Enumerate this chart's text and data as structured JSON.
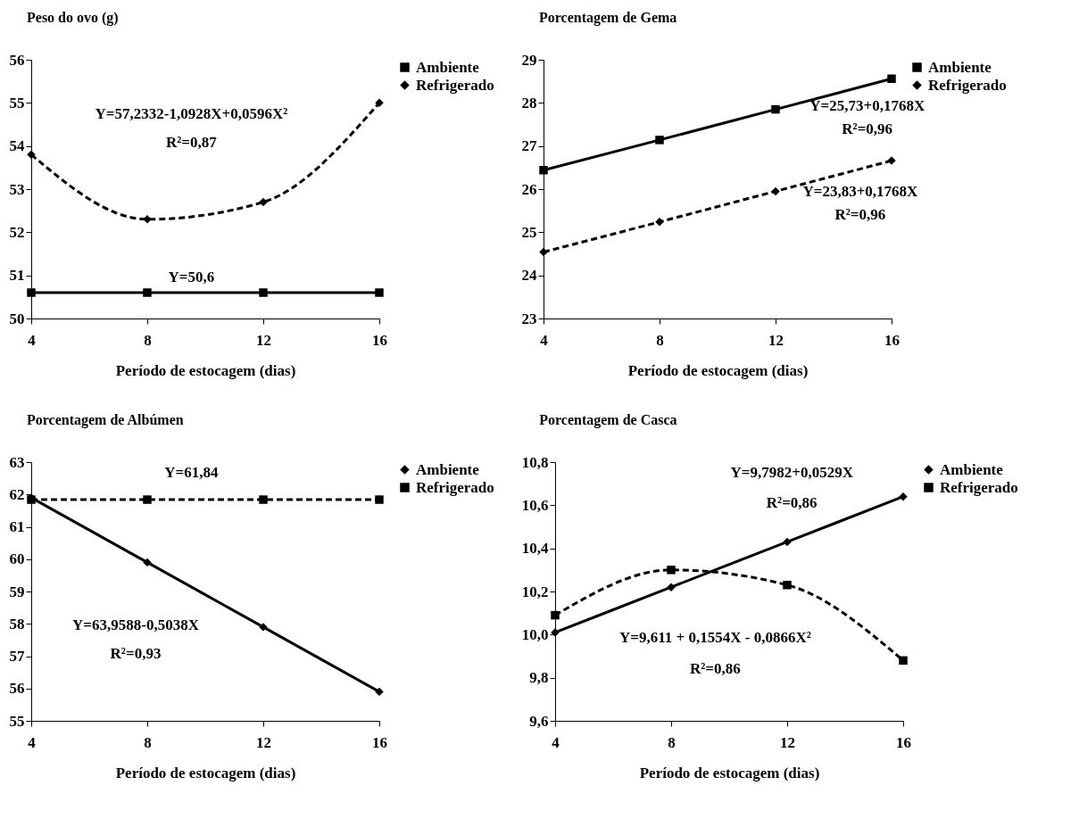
{
  "chart_data": [
    {
      "type": "line",
      "title": "Peso do ovo (g)",
      "xlabel": "Período de estocagem (dias)",
      "x": [
        4,
        8,
        12,
        16
      ],
      "xlim": [
        4,
        16
      ],
      "xticks": [
        4,
        8,
        12,
        16
      ],
      "ylim": [
        50,
        56
      ],
      "yticks": [
        50,
        51,
        52,
        53,
        54,
        55,
        56
      ],
      "grid": false,
      "legend": "right",
      "series": [
        {
          "name": "Ambiente",
          "color": "#000000",
          "marker": "square",
          "line_style": "solid",
          "values": [
            50.6,
            50.6,
            50.6,
            50.6
          ]
        },
        {
          "name": "Refrigerado",
          "color": "#000000",
          "marker": "diamond",
          "line_style": "dashed",
          "values": [
            53.8,
            52.3,
            52.7,
            55.0
          ]
        }
      ],
      "annotations": [
        "Y=57,2332-1,0928X+0,0596X²",
        "R²=0,87",
        "Y=50,6"
      ]
    },
    {
      "type": "line",
      "title": "Porcentagem de Gema",
      "xlabel": "Período de estocagem (dias)",
      "x": [
        4,
        8,
        12,
        16
      ],
      "xlim": [
        4,
        16
      ],
      "xticks": [
        4,
        8,
        12,
        16
      ],
      "ylim": [
        23,
        29
      ],
      "yticks": [
        23,
        24,
        25,
        26,
        27,
        28,
        29
      ],
      "grid": false,
      "legend": "right",
      "series": [
        {
          "name": "Ambiente",
          "color": "#000000",
          "marker": "square",
          "line_style": "solid",
          "values": [
            26.44,
            27.14,
            27.85,
            28.56
          ]
        },
        {
          "name": "Refrigerado",
          "color": "#000000",
          "marker": "diamond",
          "line_style": "dashed",
          "values": [
            24.54,
            25.24,
            25.95,
            26.66
          ]
        }
      ],
      "annotations": [
        "Y=25,73+0,1768X",
        "R²=0,96",
        "Y=23,83+0,1768X",
        "R²=0,96"
      ]
    },
    {
      "type": "line",
      "title": "Porcentagem de Albúmen",
      "xlabel": "Período de estocagem (dias)",
      "x": [
        4,
        8,
        12,
        16
      ],
      "xlim": [
        4,
        16
      ],
      "xticks": [
        4,
        8,
        12,
        16
      ],
      "ylim": [
        55,
        63
      ],
      "yticks": [
        55,
        56,
        57,
        58,
        59,
        60,
        61,
        62,
        63
      ],
      "grid": false,
      "legend": "right",
      "series": [
        {
          "name": "Ambiente",
          "color": "#000000",
          "marker": "diamond",
          "line_style": "solid",
          "values": [
            61.9,
            59.9,
            57.9,
            55.9
          ]
        },
        {
          "name": "Refrigerado",
          "color": "#000000",
          "marker": "square",
          "line_style": "dashed",
          "values": [
            61.84,
            61.84,
            61.84,
            61.84
          ]
        }
      ],
      "annotations": [
        "Y=61,84",
        "Y=63,9588-0,5038X",
        "R²=0,93"
      ]
    },
    {
      "type": "line",
      "title": "Porcentagem de Casca",
      "xlabel": "Período de estocagem (dias)",
      "x": [
        4,
        8,
        12,
        16
      ],
      "xlim": [
        4,
        16
      ],
      "xticks": [
        4,
        8,
        12,
        16
      ],
      "ylim": [
        9.6,
        10.8
      ],
      "yticks": [
        {
          "value": 9.6,
          "label": "9,6"
        },
        {
          "value": 9.8,
          "label": "9,8"
        },
        {
          "value": 10.0,
          "label": "10,0"
        },
        {
          "value": 10.2,
          "label": "10,2"
        },
        {
          "value": 10.4,
          "label": "10,4"
        },
        {
          "value": 10.6,
          "label": "10,6"
        },
        {
          "value": 10.8,
          "label": "10,8"
        }
      ],
      "grid": false,
      "legend": "right",
      "series": [
        {
          "name": "Ambiente",
          "color": "#000000",
          "marker": "diamond",
          "line_style": "solid",
          "values": [
            10.01,
            10.22,
            10.43,
            10.64
          ]
        },
        {
          "name": "Refrigerado",
          "color": "#000000",
          "marker": "square",
          "line_style": "dashed",
          "values": [
            10.09,
            10.3,
            10.23,
            9.88
          ]
        }
      ],
      "annotations": [
        "Y=9,7982+0,0529X",
        "R²=0,86",
        "Y=9,611 + 0,1554X - 0,0866X²",
        "R²=0,86"
      ]
    }
  ]
}
